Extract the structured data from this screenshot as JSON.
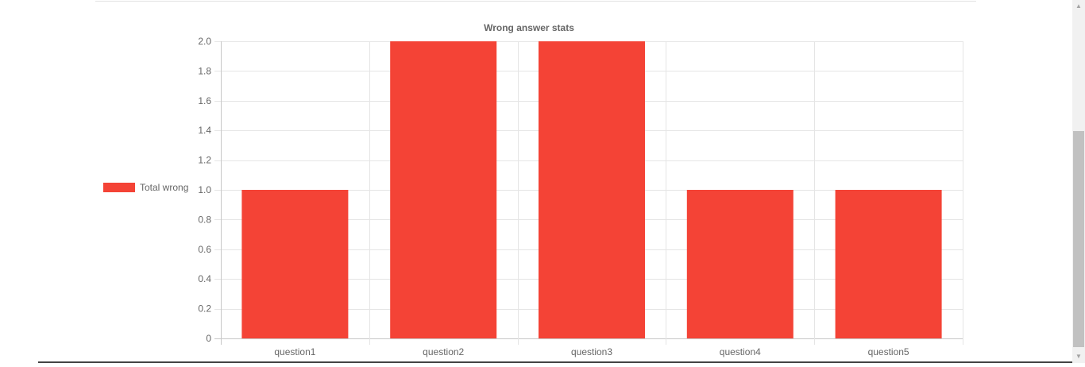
{
  "chart_data": {
    "type": "bar",
    "title": "Wrong answer stats",
    "categories": [
      "question1",
      "question2",
      "question3",
      "question4",
      "question5"
    ],
    "series": [
      {
        "name": "Total wrong",
        "values": [
          1,
          2,
          2,
          1,
          1
        ],
        "color": "#f44336"
      }
    ],
    "ylim": [
      0,
      2
    ],
    "y_ticks": [
      "0",
      "0.2",
      "0.4",
      "0.6",
      "0.8",
      "1.0",
      "1.2",
      "1.4",
      "1.6",
      "1.8",
      "2.0"
    ],
    "y_tick_values": [
      0,
      0.2,
      0.4,
      0.6,
      0.8,
      1.0,
      1.2,
      1.4,
      1.6,
      1.8,
      2.0
    ],
    "grid": true,
    "legend_position": "left"
  },
  "scrollbar": {
    "up_icon": "arrow-up-icon",
    "down_icon": "arrow-down-icon"
  }
}
